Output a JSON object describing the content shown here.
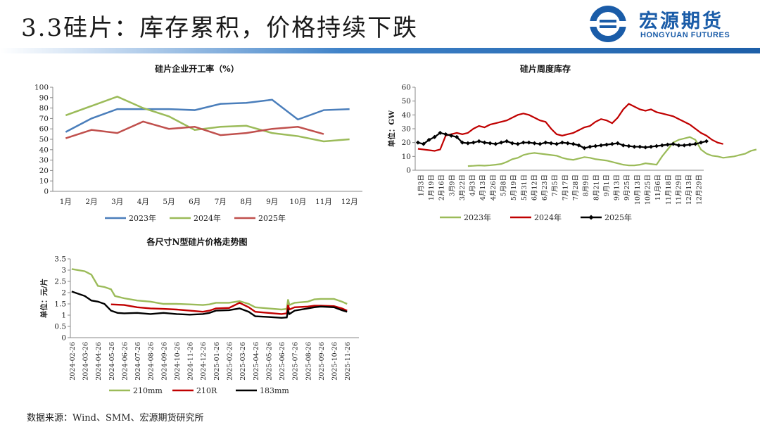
{
  "header": {
    "title": "3.3硅片：库存累积，价格持续下跌"
  },
  "logo": {
    "name_cn": "宏源期货",
    "name_en": "HONGYUAN FUTURES"
  },
  "footer": {
    "source": "数据来源：Wind、SMM、宏源期货研究所"
  },
  "chart_data": [
    {
      "type": "line",
      "title": "硅片企业开工率（%）",
      "categories": [
        "1月",
        "2月",
        "3月",
        "4月",
        "5月",
        "6月",
        "7月",
        "8月",
        "9月",
        "10月",
        "11月",
        "12月"
      ],
      "ylim": [
        0,
        100
      ],
      "yticks": [
        0,
        10,
        20,
        30,
        40,
        50,
        60,
        70,
        80,
        90,
        100
      ],
      "series": [
        {
          "name": "2023年",
          "color": "#4a7ebb",
          "values": [
            57,
            70,
            79,
            79,
            79,
            78,
            84,
            85,
            88,
            69,
            78,
            79
          ]
        },
        {
          "name": "2024年",
          "color": "#9bbb59",
          "values": [
            73,
            82,
            91,
            80,
            72,
            59,
            62,
            63,
            56,
            53,
            48,
            50
          ]
        },
        {
          "name": "2025年",
          "color": "#c0504d",
          "values": [
            51,
            59,
            56,
            67,
            60,
            62,
            54,
            56,
            60,
            62,
            55,
            null
          ]
        }
      ]
    },
    {
      "type": "line",
      "title": "硅片周度库存",
      "ylabel": "单位：GW",
      "ylim": [
        0,
        60
      ],
      "yticks": [
        0,
        10,
        20,
        30,
        40,
        50,
        60
      ],
      "xticklabels": [
        "1月3日",
        "1月19日",
        "2月16日",
        "3月9日",
        "3月22日",
        "4月3日",
        "4月13日",
        "4月26日",
        "5月8日",
        "5月19日",
        "5月31日",
        "6月12日",
        "6月23日",
        "7月5日",
        "7月17日",
        "7月28日",
        "8月9日",
        "8月21日",
        "9月1日",
        "9月13日",
        "9月25日",
        "10月13日",
        "10月25日",
        "11月6日",
        "11月18日",
        "11月29日",
        "12月13日",
        "12月29日"
      ],
      "n_weeks": 52,
      "series": [
        {
          "name": "2023年",
          "color": "#9bbb59",
          "start_week": 9,
          "values": [
            3,
            3.2,
            3.5,
            3.3,
            3.6,
            4,
            4.5,
            6,
            8,
            9,
            11,
            12,
            12.5,
            12,
            11.5,
            11,
            10.5,
            9,
            8,
            7.5,
            8.5,
            9.5,
            9,
            8,
            7.5,
            7,
            6,
            5,
            4,
            3.5,
            3.5,
            4,
            5,
            4.5,
            4,
            10,
            15,
            20,
            22,
            23,
            24,
            22,
            15,
            12,
            10.5,
            10,
            9,
            9.5,
            10,
            11,
            12,
            14,
            15
          ]
        },
        {
          "name": "2024年",
          "color": "#c00000",
          "start_week": 0,
          "values": [
            15.5,
            15,
            14.5,
            14,
            15,
            25,
            26,
            27,
            26,
            27,
            30,
            32,
            31,
            33,
            34,
            35,
            36,
            38,
            40,
            41,
            40,
            38,
            36,
            35,
            30,
            26,
            25,
            26,
            27,
            29,
            31,
            32,
            35,
            37,
            36,
            34,
            38,
            44,
            48,
            46,
            44,
            43,
            44,
            42,
            41,
            40,
            39,
            37,
            35,
            33,
            30,
            27,
            25,
            22,
            20,
            19
          ]
        },
        {
          "name": "2025年",
          "color": "#000000",
          "start_week": 0,
          "values": [
            20,
            19,
            22,
            24,
            27,
            26,
            25,
            24,
            20,
            19.5,
            20,
            21,
            20,
            19.5,
            19,
            20,
            21,
            19.5,
            19,
            20,
            20,
            19.5,
            19,
            20,
            19.5,
            19,
            20,
            19.5,
            19,
            18,
            16,
            17,
            17.5,
            18,
            18.5,
            19,
            19.5,
            18,
            17.5,
            17,
            17,
            16.5,
            17,
            17.5,
            18,
            18.5,
            19,
            18,
            18,
            18.5,
            19,
            20,
            21
          ]
        }
      ]
    },
    {
      "type": "line",
      "title": "各尺寸N型硅片价格走势图",
      "ylabel": "单位：元/片",
      "ylim": [
        0,
        3.5
      ],
      "yticks": [
        0,
        0.5,
        1,
        1.5,
        2,
        2.5,
        3,
        3.5
      ],
      "xticklabels": [
        "2024-02-26",
        "2024-03-26",
        "2024-04-26",
        "2024-05-26",
        "2024-06-26",
        "2024-07-26",
        "2024-08-26",
        "2024-09-26",
        "2024-10-26",
        "2024-11-26",
        "2024-12-26",
        "2025-01-26",
        "2025-02-26",
        "2025-03-26",
        "2025-04-26",
        "2025-05-26",
        "2025-06-26",
        "2025-07-26",
        "2025-08-26",
        "2025-09-26",
        "2025-10-26",
        "2025-11-26"
      ],
      "series": [
        {
          "name": "210mm",
          "color": "#9bbb59",
          "points": [
            [
              0,
              3.05
            ],
            [
              1,
              2.95
            ],
            [
              1.5,
              2.8
            ],
            [
              2,
              2.3
            ],
            [
              2.5,
              2.25
            ],
            [
              3,
              2.15
            ],
            [
              3.3,
              1.85
            ],
            [
              4,
              1.75
            ],
            [
              5,
              1.65
            ],
            [
              6,
              1.6
            ],
            [
              7,
              1.5
            ],
            [
              8,
              1.5
            ],
            [
              9,
              1.48
            ],
            [
              10,
              1.45
            ],
            [
              10.5,
              1.48
            ],
            [
              11,
              1.55
            ],
            [
              12,
              1.55
            ],
            [
              12.8,
              1.62
            ],
            [
              13.5,
              1.5
            ],
            [
              14,
              1.35
            ],
            [
              15,
              1.3
            ],
            [
              16,
              1.25
            ],
            [
              16.4,
              1.28
            ],
            [
              16.5,
              1.7
            ],
            [
              16.6,
              1.45
            ],
            [
              17,
              1.55
            ],
            [
              18,
              1.6
            ],
            [
              18.5,
              1.7
            ],
            [
              19,
              1.72
            ],
            [
              20,
              1.72
            ],
            [
              20.6,
              1.6
            ],
            [
              21,
              1.5
            ]
          ]
        },
        {
          "name": "210R",
          "color": "#c00000",
          "points": [
            [
              3,
              1.48
            ],
            [
              4,
              1.45
            ],
            [
              5,
              1.35
            ],
            [
              6,
              1.3
            ],
            [
              7,
              1.28
            ],
            [
              8,
              1.25
            ],
            [
              9,
              1.2
            ],
            [
              10,
              1.15
            ],
            [
              10.5,
              1.2
            ],
            [
              11,
              1.3
            ],
            [
              12,
              1.32
            ],
            [
              12.8,
              1.55
            ],
            [
              13.5,
              1.35
            ],
            [
              14,
              1.15
            ],
            [
              15,
              1.1
            ],
            [
              16,
              1.05
            ],
            [
              16.4,
              1.08
            ],
            [
              16.5,
              1.45
            ],
            [
              16.6,
              1.25
            ],
            [
              17,
              1.35
            ],
            [
              18,
              1.38
            ],
            [
              18.5,
              1.42
            ],
            [
              19,
              1.42
            ],
            [
              20,
              1.4
            ],
            [
              20.6,
              1.3
            ],
            [
              21,
              1.2
            ]
          ]
        },
        {
          "name": "183mm",
          "color": "#000000",
          "points": [
            [
              0,
              2.05
            ],
            [
              1,
              1.85
            ],
            [
              1.5,
              1.65
            ],
            [
              2,
              1.6
            ],
            [
              2.5,
              1.5
            ],
            [
              3,
              1.2
            ],
            [
              3.5,
              1.1
            ],
            [
              4,
              1.08
            ],
            [
              5,
              1.1
            ],
            [
              6,
              1.05
            ],
            [
              7,
              1.1
            ],
            [
              8,
              1.05
            ],
            [
              9,
              1.02
            ],
            [
              10,
              1.05
            ],
            [
              10.5,
              1.1
            ],
            [
              11,
              1.2
            ],
            [
              12,
              1.22
            ],
            [
              12.8,
              1.3
            ],
            [
              13.5,
              1.15
            ],
            [
              14,
              0.95
            ],
            [
              15,
              0.92
            ],
            [
              16,
              0.88
            ],
            [
              16.4,
              0.9
            ],
            [
              16.5,
              1.2
            ],
            [
              16.6,
              1.05
            ],
            [
              17,
              1.2
            ],
            [
              18,
              1.3
            ],
            [
              18.5,
              1.35
            ],
            [
              19,
              1.38
            ],
            [
              20,
              1.35
            ],
            [
              20.6,
              1.22
            ],
            [
              21,
              1.15
            ]
          ]
        }
      ]
    }
  ]
}
